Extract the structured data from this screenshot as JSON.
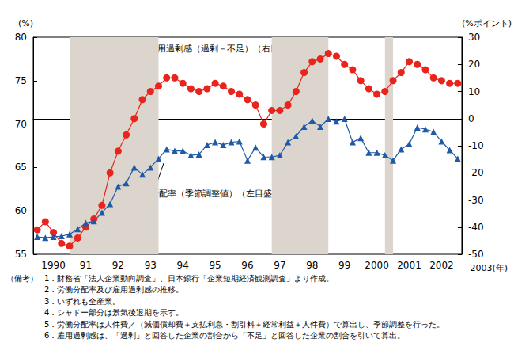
{
  "chart_data": {
    "type": "line",
    "categories": [
      null,
      null,
      "1990",
      null,
      null,
      null,
      "91",
      null,
      null,
      null,
      "92",
      null,
      null,
      null,
      "93",
      null,
      null,
      null,
      "94",
      null,
      null,
      null,
      "95",
      null,
      null,
      null,
      "96",
      null,
      null,
      null,
      "97",
      null,
      null,
      null,
      "98",
      null,
      null,
      null,
      "99",
      null,
      null,
      null,
      "2000",
      null,
      null,
      null,
      "2001",
      null,
      null,
      null,
      "2002",
      null,
      null
    ],
    "xlabel": "2003(年)",
    "ylabel": "(%)",
    "y2label": "(%ポイント)",
    "ylim": [
      55,
      80
    ],
    "yticks": [
      55,
      60,
      65,
      70,
      75,
      80
    ],
    "y2lim": [
      -50,
      30
    ],
    "y2ticks": [
      -50,
      -40,
      -30,
      -20,
      -10,
      0,
      10,
      20,
      30
    ],
    "grid": false,
    "shaded": [
      [
        4,
        15
      ],
      [
        29,
        36
      ],
      [
        43,
        44
      ]
    ],
    "series": [
      {
        "name": "雇用過剰感（過剰－不足）（右目盛）",
        "axis": "y2",
        "color": "#e8241c",
        "marker": "circle",
        "values": [
          -41,
          -38,
          -42,
          -46,
          -47,
          -44,
          -40,
          -37,
          -32,
          -20,
          -12,
          -6,
          0,
          7,
          10,
          12,
          15,
          15,
          13,
          11,
          10,
          11,
          13,
          12,
          10,
          9,
          7,
          5,
          -2,
          3,
          3,
          5,
          10,
          17,
          21,
          22,
          24,
          23,
          20,
          18,
          14,
          11,
          9,
          10,
          14,
          17,
          21,
          20,
          18,
          15,
          14,
          13,
          13
        ]
      },
      {
        "name": "労働分配率（季節調整値）（左目盛）",
        "color": "#1f5aa6",
        "marker": "triangle",
        "values": [
          57.0,
          56.9,
          57.0,
          57.1,
          57.3,
          57.9,
          58.6,
          58.8,
          59.8,
          60.8,
          62.8,
          63.2,
          65.0,
          64.2,
          65.0,
          66.0,
          67.1,
          66.9,
          66.9,
          66.4,
          66.5,
          67.6,
          67.9,
          67.6,
          67.9,
          68.0,
          65.8,
          67.3,
          66.2,
          66.2,
          66.4,
          67.9,
          68.6,
          69.7,
          70.4,
          69.7,
          70.6,
          70.3,
          70.6,
          67.9,
          68.4,
          66.7,
          66.7,
          66.4,
          65.8,
          67.1,
          67.7,
          69.6,
          69.4,
          69.1,
          68.0,
          67.0,
          66.0
        ]
      }
    ],
    "notes": {
      "title": "（備考）",
      "lines": [
        "1．財務省「法人企業動向調査」、日本銀行「企業短期経済観測調査」より作成。",
        "2．労働分配率及び雇用過剰感の推移。",
        "3．いずれも全産業。",
        "4．シャドー部分は景気後退期を示す。",
        "5．労働分配率は人件費／（減価償却費＋支払利息・割引料＋経常利益＋人件費）で算出し、季節調整を行った。",
        "6．雇用過剰感は、「過剰」と回答した企業の割合から「不足」と回答した企業の割合を引いて算出。"
      ]
    }
  }
}
